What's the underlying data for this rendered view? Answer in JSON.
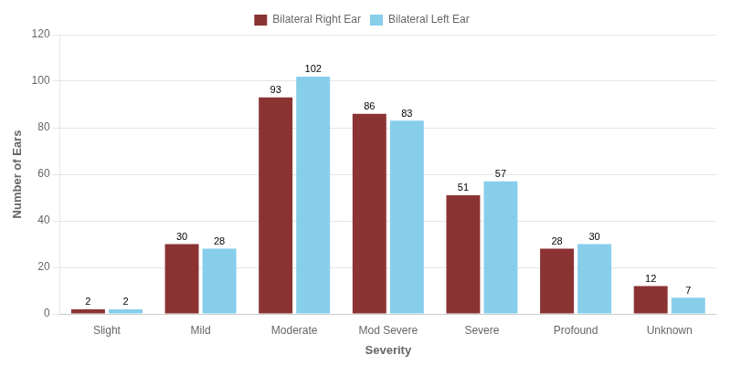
{
  "chart_data": {
    "type": "bar",
    "categories": [
      "Slight",
      "Mild",
      "Moderate",
      "Mod Severe",
      "Severe",
      "Profound",
      "Unknown"
    ],
    "series": [
      {
        "name": "Bilateral Right Ear",
        "color": "#8B3333",
        "values": [
          2,
          30,
          93,
          86,
          51,
          28,
          12
        ]
      },
      {
        "name": "Bilateral Left Ear",
        "color": "#87CEEB",
        "values": [
          2,
          28,
          102,
          83,
          57,
          30,
          7
        ]
      }
    ],
    "xlabel": "Severity",
    "ylabel": "Number of Ears",
    "ylim": [
      0,
      120
    ],
    "yticks": [
      0,
      20,
      40,
      60,
      80,
      100,
      120
    ],
    "grid": true,
    "legend": "top",
    "data_labels": true
  }
}
